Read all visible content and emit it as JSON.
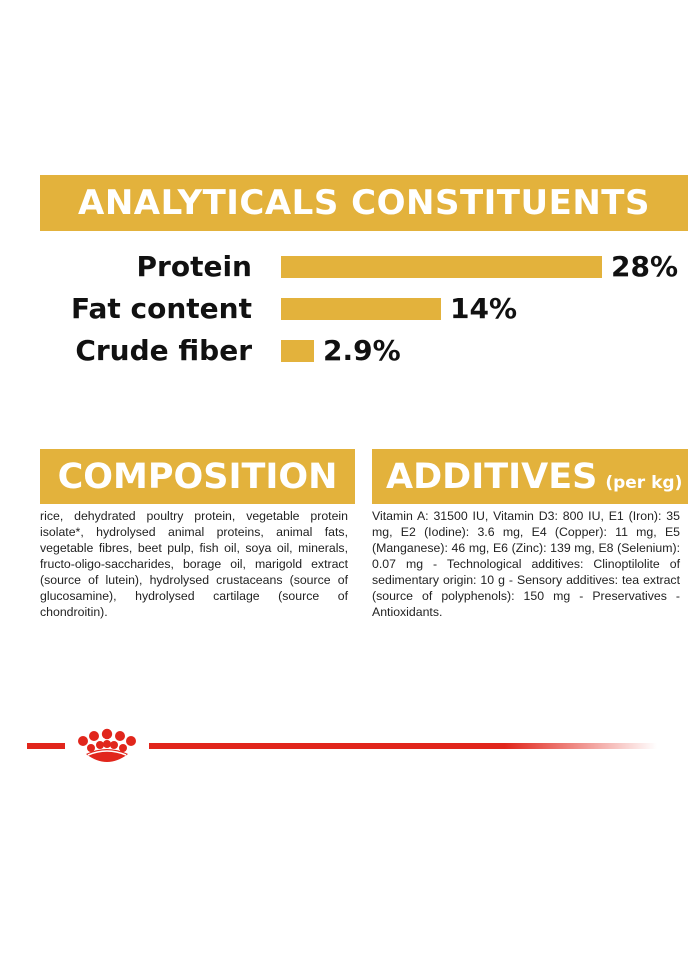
{
  "analytics": {
    "title": "ANALYTICALS CONSTITUENTS",
    "rows": [
      {
        "label": "Protein",
        "value": "28%",
        "fraction": 0.28
      },
      {
        "label": "Fat content",
        "value": "14%",
        "fraction": 0.14
      },
      {
        "label": "Crude fiber",
        "value": "2.9%",
        "fraction": 0.029
      }
    ]
  },
  "composition": {
    "title": "COMPOSITION",
    "text": "rice, dehydrated poultry protein, vegetable protein isolate*, hydrolysed animal proteins, animal fats, vegetable fibres, beet pulp, fish oil, soya oil, minerals, fructo-oligo-saccharides, borage oil, marigold extract (source of lutein), hydrolysed crustaceans (source of glucosamine), hydrolysed cartilage (source of chondroitin)."
  },
  "additives": {
    "title": "ADDITIVES",
    "unit": "(per kg)",
    "text": "Vitamin A: 31500 IU, Vitamin D3: 800 IU, E1 (Iron): 35 mg, E2 (Iodine): 3.6 mg, E4 (Copper): 11 mg, E5 (Manganese): 46 mg, E6 (Zinc): 139 mg, E8 (Selenium): 0.07 mg - Technological additives: Clinoptilolite of sedimentary origin: 10 g - Sensory additives: tea extract (source of polyphenols): 150 mg - Preservatives - Antioxidants."
  },
  "colors": {
    "banner": "#e3b23c",
    "brand_red": "#e1261c"
  },
  "brand": {
    "logo_icon": "crown-icon"
  }
}
